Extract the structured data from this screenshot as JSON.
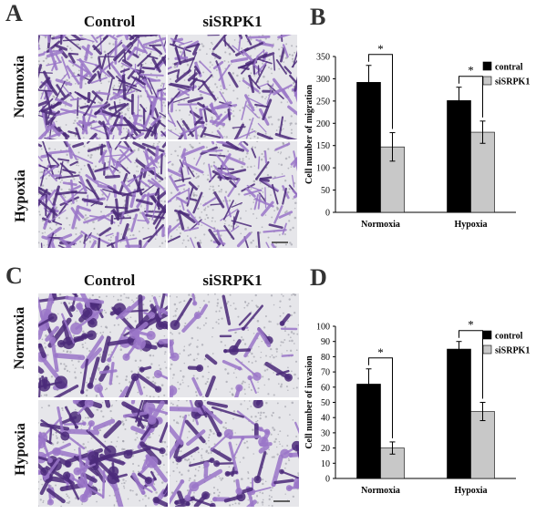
{
  "panels": {
    "a_letter": "A",
    "b_letter": "B",
    "c_letter": "C",
    "d_letter": "D",
    "col_control": "Control",
    "col_sisrpk1": "siSRPK1",
    "row_normoxia": "Normoxia",
    "row_hypoxia": "Hypoxia"
  },
  "colors": {
    "control_bar": "#000000",
    "sisrpk1_bar": "#c8c8c8",
    "stain_dark": "#4b2a7a",
    "stain_light": "#9a76c8",
    "background_cells": "#e6e6ea"
  },
  "chart_data": [
    {
      "type": "bar",
      "title": "",
      "xlabel": "",
      "ylabel": "Cell number of migration",
      "ylim": [
        0,
        350
      ],
      "yticks": [
        0,
        50,
        100,
        150,
        200,
        250,
        300,
        350
      ],
      "categories": [
        "Normoxia",
        "Hypoxia"
      ],
      "series": [
        {
          "name": "contral",
          "values": [
            292,
            251
          ],
          "errors": [
            38,
            30
          ],
          "color": "#000000"
        },
        {
          "name": "siSRPK1",
          "values": [
            147,
            180
          ],
          "errors": [
            32,
            25
          ],
          "color": "#c8c8c8"
        }
      ],
      "significance": [
        "*",
        "*"
      ],
      "legend_position": "top-right"
    },
    {
      "type": "bar",
      "title": "",
      "xlabel": "",
      "ylabel": "Cell number of invasion",
      "ylim": [
        0,
        100
      ],
      "yticks": [
        0,
        10,
        20,
        30,
        40,
        50,
        60,
        70,
        80,
        90,
        100
      ],
      "categories": [
        "Normoxia",
        "Hypoxia"
      ],
      "series": [
        {
          "name": "control",
          "values": [
            62,
            85
          ],
          "errors": [
            10,
            5
          ],
          "color": "#000000"
        },
        {
          "name": "siSRPK1",
          "values": [
            20,
            44
          ],
          "errors": [
            4,
            6
          ],
          "color": "#c8c8c8"
        }
      ],
      "significance": [
        "*",
        "*"
      ],
      "legend_position": "top-right"
    }
  ]
}
